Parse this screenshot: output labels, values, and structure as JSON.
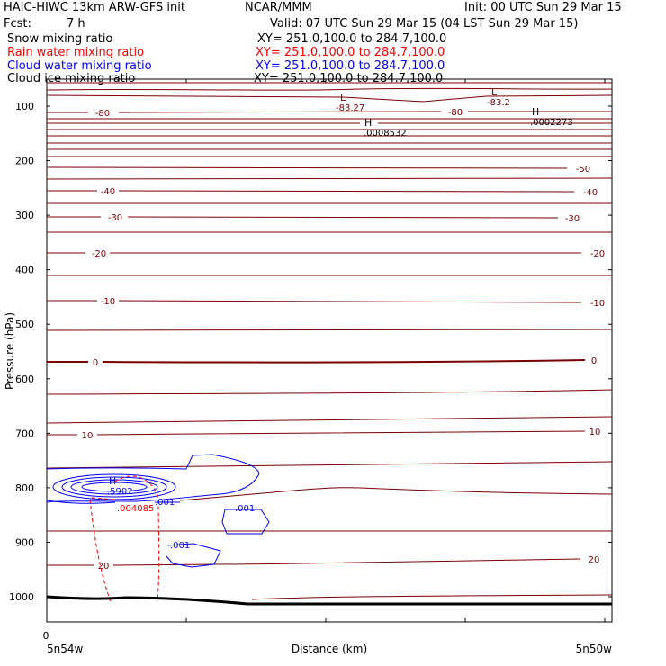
{
  "header": {
    "title": "HAIC-HIWC 13km ARW-GFS init",
    "source": "NCAR/MMM",
    "init": "Init: 00 UTC Sun 29 Mar 15",
    "fcst_label": "Fcst:",
    "fcst_value": "7 h",
    "valid": "Valid: 07 UTC Sun 29 Mar 15 (04 LST Sun 29 Mar 15)"
  },
  "legend": [
    {
      "label": "Snow mixing ratio",
      "xy": "XY= 251.0,100.0 to 284.7,100.0",
      "color": "#000000"
    },
    {
      "label": "Rain water mixing ratio",
      "xy": "XY= 251.0,100.0 to 284.7,100.0",
      "color": "#ff0000"
    },
    {
      "label": "Cloud water mixing ratio",
      "xy": "XY= 251.0,100.0 to 284.7,100.0",
      "color": "#0000ff"
    },
    {
      "label": "Cloud ice mixing ratio",
      "xy": "XY= 251.0,100.0 to 284.7,100.0",
      "color": "#000000"
    }
  ],
  "chart_data": {
    "type": "contour",
    "xlabel": "Distance (km)",
    "ylabel": "Pressure (hPa)",
    "x_tick_value": "0",
    "x_left_label": "5n54w",
    "x_right_label": "5n50w",
    "y_ticks": [
      100,
      200,
      300,
      400,
      500,
      600,
      700,
      800,
      900,
      1000
    ],
    "ylim": [
      1050,
      50
    ],
    "colors": {
      "temperature": "#7a0000",
      "rain": "#ff0000",
      "cloud_water": "#0000ff",
      "terrain": "#000000"
    },
    "temperature_labels": [
      "-80",
      "-50",
      "-40",
      "-30",
      "-20",
      "-10",
      "0",
      "10",
      "20"
    ],
    "extrema": [
      {
        "type": "L",
        "value": "-83.27",
        "color": "#7a0000"
      },
      {
        "type": "L",
        "value": "-83.2",
        "color": "#7a0000"
      },
      {
        "type": "H",
        "value": ".0008532",
        "color": "#000000"
      },
      {
        "type": "H",
        "value": ".0002273",
        "color": "#000000"
      },
      {
        "type": "H",
        "value": ".5902",
        "color": "#0000ff"
      }
    ],
    "rain_max_label": ".004085",
    "rain_contour_label": ".001",
    "cloud_water_contour_label": ".001"
  }
}
